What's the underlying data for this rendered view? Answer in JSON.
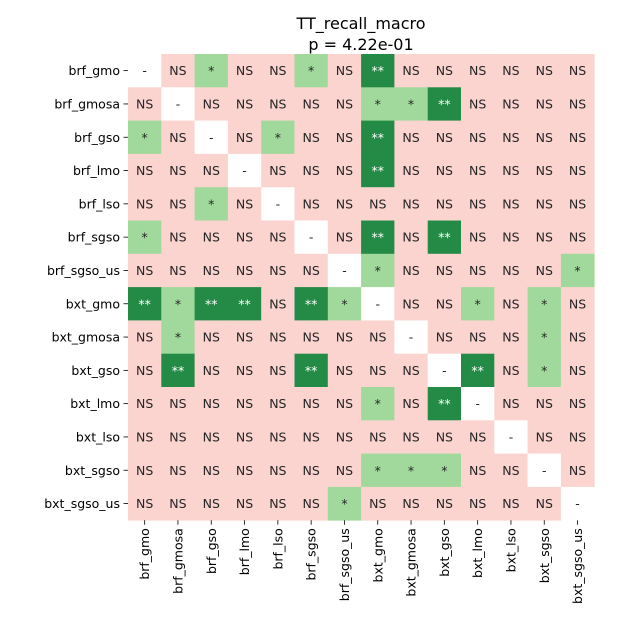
{
  "chart_data": {
    "type": "heatmap",
    "title": "TT_recall_macro",
    "subtitle": "p = 4.22e-01",
    "labels": [
      "brf_gmo",
      "brf_gmosa",
      "brf_gso",
      "brf_lmo",
      "brf_lso",
      "brf_sgso",
      "brf_sgso_us",
      "bxt_gmo",
      "bxt_gmosa",
      "bxt_gso",
      "bxt_lmo",
      "bxt_lso",
      "bxt_sgso",
      "bxt_sgso_us"
    ],
    "matrix": [
      [
        "-",
        "NS",
        "*",
        "NS",
        "NS",
        "*",
        "NS",
        "**",
        "NS",
        "NS",
        "NS",
        "NS",
        "NS",
        "NS"
      ],
      [
        "NS",
        "-",
        "NS",
        "NS",
        "NS",
        "NS",
        "NS",
        "*",
        "*",
        "**",
        "NS",
        "NS",
        "NS",
        "NS"
      ],
      [
        "*",
        "NS",
        "-",
        "NS",
        "*",
        "NS",
        "NS",
        "**",
        "NS",
        "NS",
        "NS",
        "NS",
        "NS",
        "NS"
      ],
      [
        "NS",
        "NS",
        "NS",
        "-",
        "NS",
        "NS",
        "NS",
        "**",
        "NS",
        "NS",
        "NS",
        "NS",
        "NS",
        "NS"
      ],
      [
        "NS",
        "NS",
        "*",
        "NS",
        "-",
        "NS",
        "NS",
        "NS",
        "NS",
        "NS",
        "NS",
        "NS",
        "NS",
        "NS"
      ],
      [
        "*",
        "NS",
        "NS",
        "NS",
        "NS",
        "-",
        "NS",
        "**",
        "NS",
        "**",
        "NS",
        "NS",
        "NS",
        "NS"
      ],
      [
        "NS",
        "NS",
        "NS",
        "NS",
        "NS",
        "NS",
        "-",
        "*",
        "NS",
        "NS",
        "NS",
        "NS",
        "NS",
        "*"
      ],
      [
        "**",
        "*",
        "**",
        "**",
        "NS",
        "**",
        "*",
        "-",
        "NS",
        "NS",
        "*",
        "NS",
        "*",
        "NS"
      ],
      [
        "NS",
        "*",
        "NS",
        "NS",
        "NS",
        "NS",
        "NS",
        "NS",
        "-",
        "NS",
        "NS",
        "NS",
        "*",
        "NS"
      ],
      [
        "NS",
        "**",
        "NS",
        "NS",
        "NS",
        "**",
        "NS",
        "NS",
        "NS",
        "-",
        "**",
        "NS",
        "*",
        "NS"
      ],
      [
        "NS",
        "NS",
        "NS",
        "NS",
        "NS",
        "NS",
        "NS",
        "*",
        "NS",
        "**",
        "-",
        "NS",
        "NS",
        "NS"
      ],
      [
        "NS",
        "NS",
        "NS",
        "NS",
        "NS",
        "NS",
        "NS",
        "NS",
        "NS",
        "NS",
        "NS",
        "-",
        "NS",
        "NS"
      ],
      [
        "NS",
        "NS",
        "NS",
        "NS",
        "NS",
        "NS",
        "NS",
        "*",
        "*",
        "*",
        "NS",
        "NS",
        "-",
        "NS"
      ],
      [
        "NS",
        "NS",
        "NS",
        "NS",
        "NS",
        "NS",
        "*",
        "NS",
        "NS",
        "NS",
        "NS",
        "NS",
        "NS",
        "-"
      ]
    ],
    "colors": {
      "NS": "#fbd4d0",
      "*": "#a0d99b",
      "**": "#238b45",
      "-": "#ffffff"
    },
    "text_colors": {
      "NS": "#262626",
      "*": "#262626",
      "**": "#ffffff",
      "-": "#262626"
    }
  }
}
